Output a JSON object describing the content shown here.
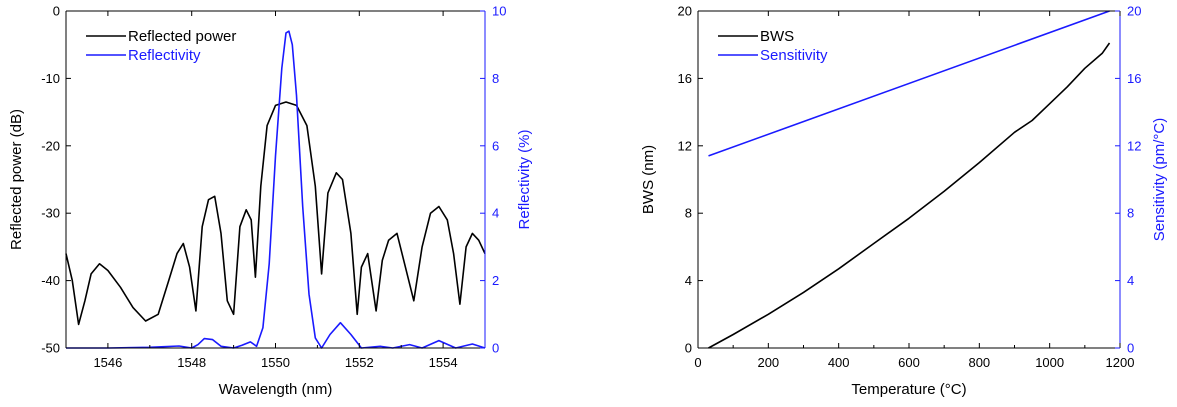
{
  "chart_data": [
    {
      "type": "line",
      "xlabel": "Wavelength (nm)",
      "ylabel": "Reflected power (dB)",
      "y2label": "Reflectivity (%)",
      "xlim": [
        1545,
        1555
      ],
      "ylim": [
        -50,
        0
      ],
      "y2lim": [
        0,
        10
      ],
      "xticks": [
        1546,
        1548,
        1550,
        1552,
        1554
      ],
      "yticks": [
        -50,
        -40,
        -30,
        -20,
        -10,
        0
      ],
      "y2ticks": [
        0,
        2,
        4,
        6,
        8,
        10
      ],
      "legend_position": "top-left",
      "grid": false,
      "colors": {
        "axis_left": "#000000",
        "axis_right": "#1a1aff"
      },
      "series": [
        {
          "name": "Reflected power",
          "axis": "left",
          "color": "#000000",
          "x": [
            1545.0,
            1545.15,
            1545.3,
            1545.45,
            1545.6,
            1545.8,
            1546.0,
            1546.3,
            1546.6,
            1546.9,
            1547.2,
            1547.45,
            1547.65,
            1547.8,
            1547.95,
            1548.1,
            1548.25,
            1548.4,
            1548.55,
            1548.7,
            1548.85,
            1549.0,
            1549.15,
            1549.3,
            1549.42,
            1549.52,
            1549.65,
            1549.8,
            1550.0,
            1550.25,
            1550.5,
            1550.75,
            1550.95,
            1551.1,
            1551.25,
            1551.45,
            1551.6,
            1551.8,
            1551.95,
            1552.05,
            1552.2,
            1552.4,
            1552.55,
            1552.7,
            1552.9,
            1553.1,
            1553.3,
            1553.5,
            1553.7,
            1553.9,
            1554.1,
            1554.25,
            1554.4,
            1554.55,
            1554.7,
            1554.85,
            1555.0
          ],
          "y": [
            -36,
            -40,
            -46.5,
            -43,
            -39,
            -37.5,
            -38.5,
            -41,
            -44,
            -46,
            -45,
            -40,
            -36,
            -34.5,
            -38,
            -44.5,
            -32,
            -28,
            -27.5,
            -33,
            -43,
            -45,
            -32,
            -29.5,
            -31,
            -39.5,
            -26,
            -17,
            -14,
            -13.5,
            -14,
            -17,
            -26,
            -39,
            -27,
            -24,
            -25,
            -33,
            -45,
            -38,
            -36,
            -44.5,
            -37,
            -34,
            -33,
            -38,
            -43,
            -35,
            -30,
            -29,
            -31,
            -36,
            -43.5,
            -35,
            -33,
            -34,
            -36
          ]
        },
        {
          "name": "Reflectivity",
          "axis": "right",
          "color": "#1a1aff",
          "x": [
            1545.0,
            1546.0,
            1547.0,
            1547.7,
            1548.0,
            1548.15,
            1548.3,
            1548.5,
            1548.7,
            1549.0,
            1549.2,
            1549.4,
            1549.55,
            1549.7,
            1549.85,
            1550.0,
            1550.15,
            1550.25,
            1550.32,
            1550.4,
            1550.5,
            1550.65,
            1550.8,
            1550.95,
            1551.1,
            1551.3,
            1551.55,
            1551.8,
            1552.05,
            1552.5,
            1552.8,
            1553.2,
            1553.5,
            1553.9,
            1554.3,
            1554.7,
            1555.0
          ],
          "y": [
            0.0,
            0.0,
            0.02,
            0.06,
            0.0,
            0.1,
            0.28,
            0.25,
            0.05,
            0.0,
            0.08,
            0.18,
            0.05,
            0.6,
            2.5,
            5.7,
            8.3,
            9.35,
            9.4,
            9.0,
            7.5,
            4.2,
            1.6,
            0.3,
            0.0,
            0.4,
            0.75,
            0.4,
            0.0,
            0.05,
            0.0,
            0.1,
            0.0,
            0.22,
            0.0,
            0.12,
            0.0
          ]
        }
      ]
    },
    {
      "type": "line",
      "xlabel": "Temperature (°C)",
      "ylabel": "BWS (nm)",
      "y2label": "Sensitivity (pm/°C)",
      "xlim": [
        0,
        1200
      ],
      "ylim": [
        0,
        20
      ],
      "y2lim": [
        0,
        20
      ],
      "xticks": [
        0,
        200,
        400,
        600,
        800,
        1000,
        1200
      ],
      "yticks": [
        0,
        4,
        8,
        12,
        16,
        20
      ],
      "y2ticks": [
        0,
        4,
        8,
        12,
        16,
        20
      ],
      "legend_position": "top-left",
      "grid": false,
      "colors": {
        "axis_left": "#000000",
        "axis_right": "#1a1aff"
      },
      "series": [
        {
          "name": "BWS",
          "axis": "left",
          "color": "#000000",
          "x": [
            30,
            100,
            200,
            300,
            400,
            500,
            600,
            700,
            800,
            900,
            950,
            1000,
            1050,
            1100,
            1150,
            1170
          ],
          "y": [
            0.0,
            0.8,
            2.0,
            3.3,
            4.7,
            6.2,
            7.7,
            9.3,
            11.0,
            12.8,
            13.5,
            14.5,
            15.5,
            16.6,
            17.5,
            18.1
          ]
        },
        {
          "name": "Sensitivity",
          "axis": "right",
          "color": "#1a1aff",
          "x": [
            30,
            1170
          ],
          "y": [
            11.4,
            20.0
          ]
        }
      ]
    }
  ]
}
